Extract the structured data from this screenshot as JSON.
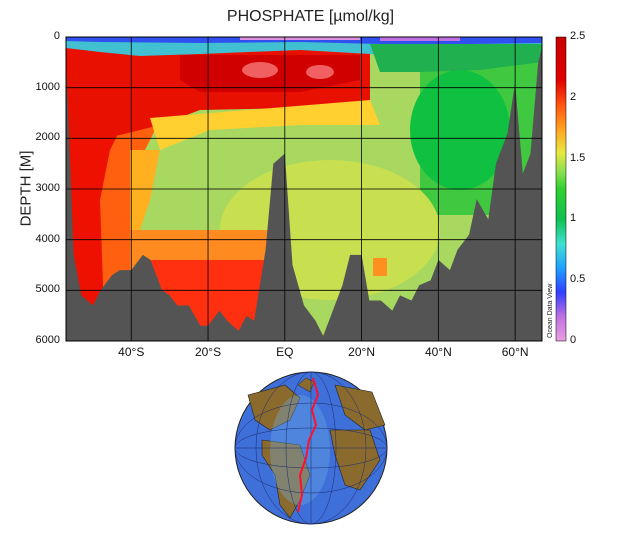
{
  "chart_data": {
    "type": "heatmap",
    "title": "PHOSPHATE [µmol/kg]",
    "ylabel": "DEPTH [M]",
    "xlabel": "",
    "x_ticks": [
      "40°S",
      "20°S",
      "EQ",
      "20°N",
      "40°N",
      "60°N"
    ],
    "x_tick_values": [
      -40,
      -20,
      0,
      20,
      40,
      60
    ],
    "xlim": [
      -57,
      67
    ],
    "y_ticks": [
      "0",
      "1000",
      "2000",
      "3000",
      "4000",
      "5000",
      "6000"
    ],
    "y_tick_values": [
      0,
      1000,
      2000,
      3000,
      4000,
      5000,
      6000
    ],
    "ylim": [
      0,
      6000
    ],
    "y_inverted": true,
    "grid": true,
    "colorbar": {
      "range": [
        0,
        2.5
      ],
      "tick_labels": [
        "0",
        "0.5",
        "1",
        "1.5",
        "2",
        "2.5"
      ],
      "tick_values": [
        0,
        0.5,
        1,
        1.5,
        2,
        2.5
      ],
      "colors": [
        "#e8a0e0",
        "#8a2be2",
        "#2040ff",
        "#20a0ff",
        "#40e0d0",
        "#10c050",
        "#30d030",
        "#90e050",
        "#e8e840",
        "#ffa020",
        "#ff5010",
        "#e00000",
        "#c80000"
      ]
    },
    "brand_text": "Ocean Data View",
    "bathymetry": {
      "lat": [
        -57,
        -55,
        -53,
        -50,
        -48,
        -45,
        -43,
        -40,
        -37,
        -35,
        -32,
        -30,
        -28,
        -25,
        -22,
        -20,
        -17,
        -15,
        -12,
        -10,
        -8,
        -5,
        -3,
        0,
        2,
        5,
        8,
        10,
        12,
        15,
        17,
        20,
        22,
        25,
        28,
        30,
        33,
        35,
        38,
        40,
        43,
        45,
        48,
        50,
        53,
        55,
        58,
        60,
        62,
        64,
        66,
        67
      ],
      "depth": [
        400,
        4300,
        5100,
        5300,
        5000,
        4700,
        4600,
        4600,
        4300,
        4400,
        5000,
        5100,
        5300,
        5300,
        5700,
        5700,
        5400,
        5600,
        5800,
        5500,
        5600,
        4200,
        2500,
        2300,
        4500,
        5300,
        5600,
        5900,
        5500,
        4900,
        4300,
        4300,
        5200,
        5200,
        5400,
        5100,
        5200,
        4900,
        4800,
        4400,
        4600,
        4200,
        3900,
        3200,
        3600,
        2500,
        1900,
        900,
        2700,
        2300,
        500,
        200
      ]
    },
    "features": [
      {
        "name": "southern-red-core",
        "lat_range": [
          -57,
          -30
        ],
        "depth_range": [
          300,
          5200
        ],
        "value": 2.2
      },
      {
        "name": "southern-orange-band",
        "lat_range": [
          -35,
          0
        ],
        "depth_range": [
          3500,
          5600
        ],
        "value": 1.8
      },
      {
        "name": "intermediate-maximum",
        "lat_range": [
          -50,
          20
        ],
        "depth_range": [
          300,
          1500
        ],
        "value": 2.3
      },
      {
        "name": "deep-mid-basin",
        "lat_range": [
          -30,
          35
        ],
        "depth_range": [
          1500,
          3500
        ],
        "value": 1.4
      },
      {
        "name": "north-atlantic-deep",
        "lat_range": [
          35,
          65
        ],
        "depth_range": [
          500,
          3000
        ],
        "value": 1.0
      },
      {
        "name": "surface-layer",
        "lat_range": [
          -57,
          67
        ],
        "depth_range": [
          0,
          150
        ],
        "value": 0.4
      }
    ]
  }
}
